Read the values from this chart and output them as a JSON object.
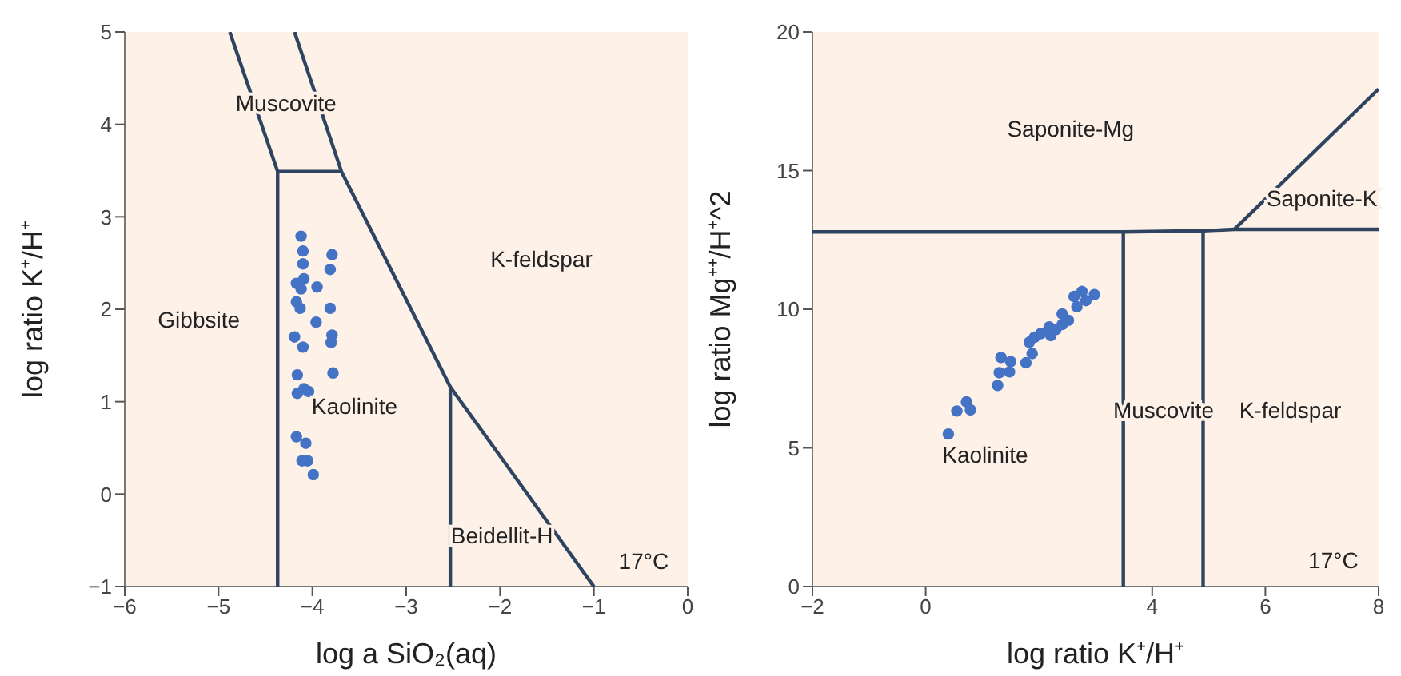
{
  "chart_data": [
    {
      "type": "scatter",
      "xlabel": "log a SiO₂(aq)",
      "ylabel": "log ratio K⁺/H⁺",
      "xlim": [
        -6,
        0
      ],
      "ylim": [
        -1,
        5
      ],
      "xticks": [
        -6,
        -5,
        -4,
        -3,
        -2,
        -1,
        0
      ],
      "yticks": [
        -1,
        0,
        1,
        2,
        3,
        4,
        5
      ],
      "marker": "circle",
      "series": [
        {
          "color": "#4472c4",
          "x": [
            -4.12,
            -4.1,
            -4.1,
            -3.79,
            -3.81,
            -4.17,
            -4.09,
            -4.12,
            -3.95,
            -4.17,
            -4.13,
            -3.81,
            -3.96,
            -4.19,
            -3.79,
            -3.8,
            -4.1,
            -4.16,
            -3.78,
            -4.16,
            -4.09,
            -4.04,
            -4.17,
            -4.07,
            -4.11,
            -4.05,
            -3.99
          ],
          "values": [
            2.79,
            2.63,
            2.49,
            2.59,
            2.43,
            2.28,
            2.33,
            2.22,
            2.24,
            2.08,
            2.01,
            2.01,
            1.86,
            1.7,
            1.72,
            1.64,
            1.59,
            1.29,
            1.31,
            1.09,
            1.14,
            1.11,
            0.62,
            0.55,
            0.36,
            0.36,
            0.21
          ]
        },
        {
          "type": "line",
          "marker": "none",
          "color": "#2e4461",
          "x": [
            -4.88,
            -4.37,
            -4.37
          ],
          "values": [
            5,
            3.49,
            -1
          ]
        },
        {
          "type": "line",
          "marker": "none",
          "color": "#2e4461",
          "x": [
            -4.19,
            -3.69,
            -2.53,
            -1.0
          ],
          "values": [
            5,
            3.49,
            1.16,
            -1.0
          ]
        },
        {
          "type": "line",
          "marker": "none",
          "color": "#2e4461",
          "x": [
            -4.37,
            -3.69
          ],
          "values": [
            3.49,
            3.49
          ]
        },
        {
          "type": "line",
          "marker": "none",
          "color": "#2e4461",
          "x": [
            -2.53,
            -2.53
          ],
          "values": [
            1.16,
            -1
          ]
        }
      ],
      "annotations": [
        "Muscovite",
        "K-feldspar",
        "Gibbsite",
        "Kaolinite",
        "Beidellit-H",
        "17°C"
      ]
    },
    {
      "type": "scatter",
      "xlabel": "log ratio K⁺/H⁺",
      "ylabel": "log ratio Mg⁺⁺/H⁺^2",
      "xlim": [
        -2,
        8
      ],
      "ylim": [
        0,
        20
      ],
      "xticks": [
        -2,
        0,
        4,
        6,
        8
      ],
      "yticks": [
        0,
        5,
        10,
        15,
        20
      ],
      "marker": "circle",
      "series": [
        {
          "color": "#4472c4",
          "x": [
            0.4,
            0.55,
            0.72,
            0.79,
            1.27,
            1.3,
            1.33,
            1.48,
            1.5,
            1.77,
            1.83,
            1.88,
            1.92,
            2.03,
            2.18,
            2.21,
            2.3,
            2.41,
            2.41,
            2.52,
            2.62,
            2.67,
            2.76,
            2.83,
            2.98
          ],
          "values": [
            5.5,
            6.33,
            6.66,
            6.37,
            7.25,
            7.71,
            8.26,
            7.74,
            8.11,
            8.07,
            8.81,
            8.4,
            8.99,
            9.12,
            9.36,
            9.05,
            9.27,
            9.83,
            9.45,
            9.6,
            10.46,
            10.09,
            10.64,
            10.31,
            10.53
          ]
        },
        {
          "type": "line",
          "marker": "none",
          "color": "#2e4461",
          "x": [
            -2,
            3.49,
            4.9,
            5.45,
            8
          ],
          "values": [
            12.79,
            12.79,
            12.83,
            12.88,
            12.88
          ]
        },
        {
          "type": "line",
          "marker": "none",
          "color": "#2e4461",
          "x": [
            5.45,
            8
          ],
          "values": [
            12.88,
            17.94
          ]
        },
        {
          "type": "line",
          "marker": "none",
          "color": "#2e4461",
          "x": [
            3.49,
            3.49
          ],
          "values": [
            12.79,
            0
          ]
        },
        {
          "type": "line",
          "marker": "none",
          "color": "#2e4461",
          "x": [
            4.9,
            4.9
          ],
          "values": [
            12.83,
            0
          ]
        }
      ],
      "annotations": [
        "Saponite-Mg",
        "Saponite-K",
        "Kaolinite",
        "Muscovite",
        "K-feldspar",
        "17°C"
      ]
    }
  ]
}
